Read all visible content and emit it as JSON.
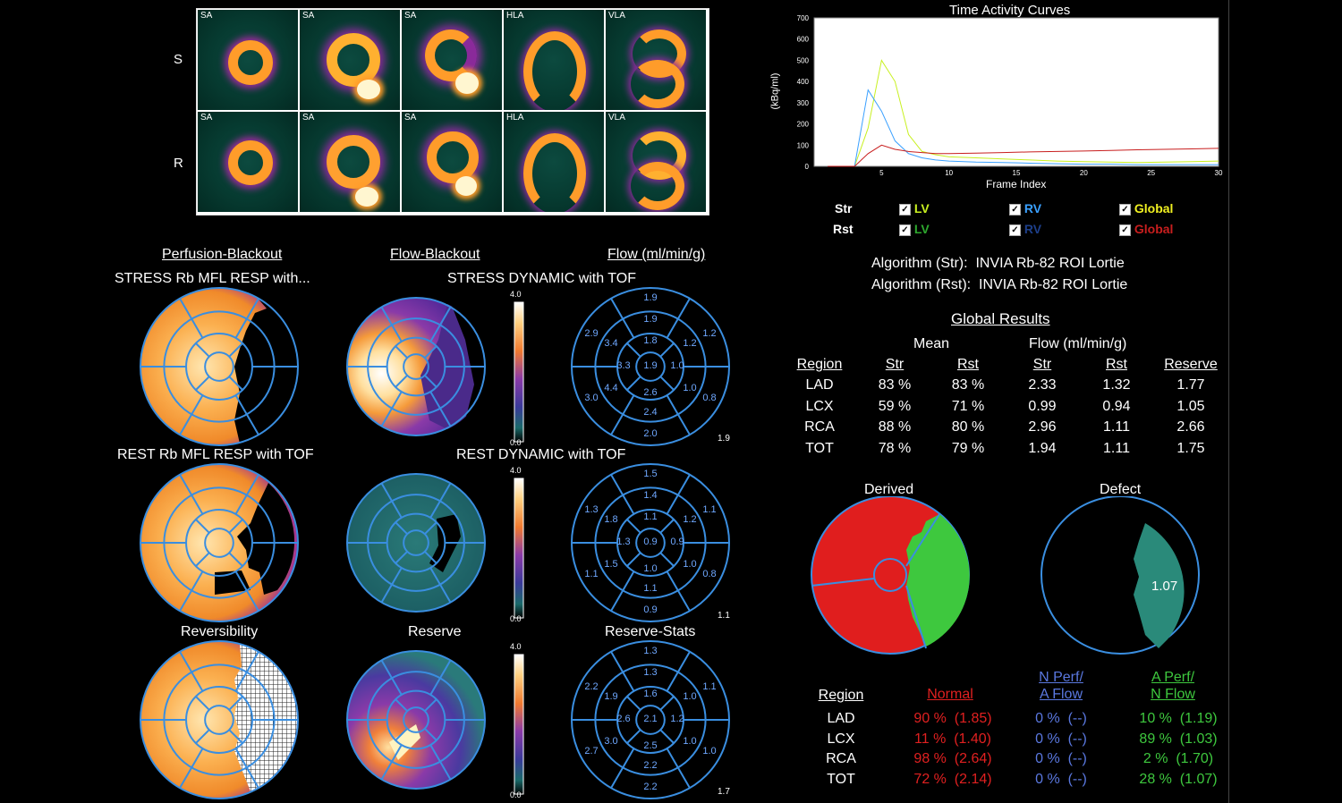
{
  "slices": {
    "rows": [
      {
        "label": "S",
        "views": [
          "SA",
          "SA",
          "SA",
          "HLA",
          "VLA"
        ]
      },
      {
        "label": "R",
        "views": [
          "SA",
          "SA",
          "SA",
          "HLA",
          "VLA"
        ]
      }
    ]
  },
  "headers": {
    "perfusion_blackout": "Perfusion-Blackout",
    "flow_blackout": "Flow-Blackout",
    "flow_units": "Flow (ml/min/g)"
  },
  "polar": {
    "stress_perf_title": "STRESS Rb MFL RESP with...",
    "stress_dyn_title": "STRESS DYNAMIC with TOF",
    "rest_perf_title": "REST Rb MFL RESP with TOF",
    "rest_dyn_title": "REST DYNAMIC with TOF",
    "reversibility_title": "Reversibility",
    "reserve_title": "Reserve",
    "reserve_stats_title": "Reserve-Stats",
    "colorbar_max": "4.0",
    "colorbar_min": "0.0",
    "stress_values": [
      "1.9",
      "1.9",
      "2.9",
      "3.4",
      "1.8",
      "1.2",
      "1.2",
      "3.3",
      "1.9",
      "1.0",
      "4.4",
      "2.6",
      "1.0",
      "0.8",
      "3.0",
      "2.4",
      "2.0"
    ],
    "stress_total": "1.9",
    "rest_values": [
      "1.5",
      "1.4",
      "1.3",
      "1.8",
      "1.1",
      "1.2",
      "1.1",
      "1.3",
      "0.9",
      "0.9",
      "1.5",
      "1.0",
      "1.0",
      "0.8",
      "1.1",
      "1.1",
      "0.9"
    ],
    "rest_total": "1.1",
    "reserve_values": [
      "1.3",
      "1.3",
      "2.2",
      "1.9",
      "1.6",
      "1.0",
      "1.1",
      "2.6",
      "2.1",
      "1.2",
      "3.0",
      "2.5",
      "1.0",
      "1.0",
      "2.7",
      "2.2",
      "2.2"
    ],
    "reserve_total": "1.7"
  },
  "tac": {
    "title": "Time Activity Curves",
    "ylabel": "(kBq/ml)",
    "xlabel": "Frame Index",
    "yticks": [
      "0",
      "100",
      "200",
      "300",
      "400",
      "500",
      "600",
      "700"
    ],
    "xticks": [
      "5",
      "10",
      "15",
      "20",
      "25",
      "30"
    ],
    "legend": {
      "str_label": "Str",
      "rst_label": "Rst",
      "lv": "LV",
      "rv": "RV",
      "global": "Global",
      "colors": {
        "lv_str": "#c8f020",
        "rv_str": "#3aa0ff",
        "global_str": "#f0f020",
        "lv_rst": "#2ea82e",
        "rv_rst": "#1d3f8a",
        "global_rst": "#c81e1e"
      }
    }
  },
  "chart_data": {
    "type": "line",
    "title": "Time Activity Curves",
    "xlabel": "Frame Index",
    "ylabel": "(kBq/ml)",
    "xlim": [
      0,
      30
    ],
    "ylim": [
      0,
      700
    ],
    "x": [
      1,
      2,
      3,
      4,
      5,
      6,
      7,
      8,
      9,
      10,
      12,
      14,
      16,
      18,
      20,
      22,
      24,
      26,
      28,
      30
    ],
    "series": [
      {
        "name": "LV",
        "values": [
          0,
          0,
          0,
          180,
          500,
          400,
          150,
          70,
          55,
          45,
          40,
          35,
          30,
          25,
          22,
          20,
          18,
          20,
          22,
          25
        ]
      },
      {
        "name": "RV",
        "values": [
          0,
          0,
          0,
          360,
          260,
          120,
          60,
          40,
          30,
          25,
          20,
          18,
          15,
          12,
          10,
          10,
          8,
          8,
          8,
          8
        ]
      },
      {
        "name": "Global",
        "values": [
          0,
          0,
          0,
          60,
          100,
          80,
          70,
          65,
          60,
          60,
          62,
          65,
          68,
          70,
          72,
          75,
          78,
          80,
          82,
          85
        ]
      }
    ]
  },
  "algorithms": {
    "str": "Algorithm (Str):  INVIA Rb-82 ROI Lortie",
    "rst": "Algorithm (Rst):  INVIA Rb-82 ROI Lortie"
  },
  "global_results": {
    "title": "Global Results",
    "mean_label": "Mean",
    "flow_label": "Flow (ml/min/g)",
    "cols": [
      "Region",
      "Str",
      "Rst",
      "Str",
      "Rst",
      "Reserve"
    ],
    "rows": [
      [
        "LAD",
        "83 %",
        "83 %",
        "2.33",
        "1.32",
        "1.77"
      ],
      [
        "LCX",
        "59 %",
        "71 %",
        "0.99",
        "0.94",
        "1.05"
      ],
      [
        "RCA",
        "88 %",
        "80 %",
        "2.96",
        "1.11",
        "2.66"
      ],
      [
        "TOT",
        "78 %",
        "79 %",
        "1.94",
        "1.11",
        "1.75"
      ]
    ]
  },
  "derived": {
    "title": "Derived",
    "defect_title": "Defect",
    "defect_value": "1.07"
  },
  "bottom_table": {
    "region_label": "Region",
    "normal_label": "Normal",
    "nperf_label_1": "N Perf/",
    "nperf_label_2": "A Flow",
    "aperf_label_1": "A Perf/",
    "aperf_label_2": "N Flow",
    "colors": {
      "normal": "#e02020",
      "nperf": "#5a78e0",
      "aperf": "#3ec83e"
    },
    "rows": [
      {
        "region": "LAD",
        "normal": "90 %  (1.85)",
        "nperf": "0 %  (--)",
        "aperf": "10 %  (1.19)"
      },
      {
        "region": "LCX",
        "normal": "11 %  (1.40)",
        "nperf": "0 %  (--)",
        "aperf": "89 %  (1.03)"
      },
      {
        "region": "RCA",
        "normal": "98 %  (2.64)",
        "nperf": "0 %  (--)",
        "aperf": "2 %  (1.70)"
      },
      {
        "region": "TOT",
        "normal": "72 %  (2.14)",
        "nperf": "0 %  (--)",
        "aperf": "28 %  (1.07)"
      }
    ]
  }
}
